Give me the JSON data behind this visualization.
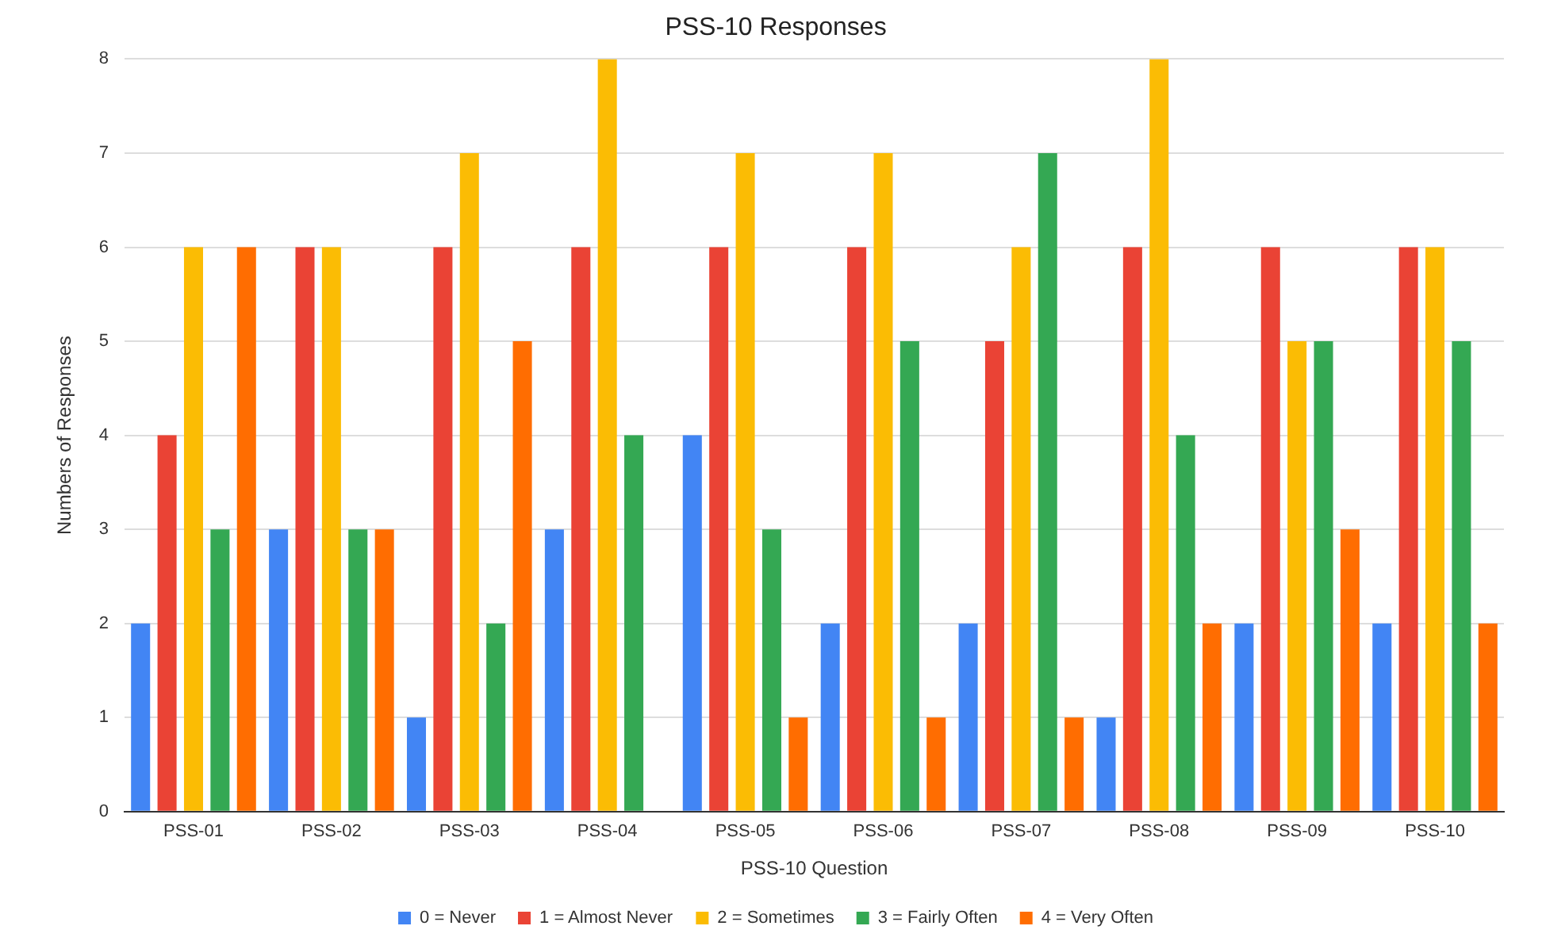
{
  "chart_data": {
    "type": "bar",
    "title": "PSS-10 Responses",
    "xlabel": "PSS-10 Question",
    "ylabel": "Numbers of Responses",
    "categories": [
      "PSS-01",
      "PSS-02",
      "PSS-03",
      "PSS-04",
      "PSS-05",
      "PSS-06",
      "PSS-07",
      "PSS-08",
      "PSS-09",
      "PSS-10"
    ],
    "series": [
      {
        "name": "0 = Never",
        "color": "#4285f4",
        "values": [
          2,
          3,
          1,
          3,
          4,
          2,
          2,
          1,
          2,
          2
        ]
      },
      {
        "name": "1 = Almost Never",
        "color": "#ea4335",
        "values": [
          4,
          6,
          6,
          6,
          6,
          6,
          5,
          6,
          6,
          6
        ]
      },
      {
        "name": "2 = Sometimes",
        "color": "#fbbc04",
        "values": [
          6,
          6,
          7,
          8,
          7,
          7,
          6,
          8,
          5,
          6
        ]
      },
      {
        "name": "3 = Fairly Often",
        "color": "#34a853",
        "values": [
          3,
          3,
          2,
          4,
          3,
          5,
          7,
          4,
          5,
          5
        ]
      },
      {
        "name": "4 = Very Often",
        "color": "#ff6d01",
        "values": [
          6,
          3,
          5,
          0,
          1,
          1,
          1,
          2,
          3,
          2
        ]
      }
    ],
    "ylim": [
      0,
      8
    ],
    "yticks": [
      0,
      1,
      2,
      3,
      4,
      5,
      6,
      7,
      8
    ],
    "grid": "y",
    "legend": "bottom"
  }
}
